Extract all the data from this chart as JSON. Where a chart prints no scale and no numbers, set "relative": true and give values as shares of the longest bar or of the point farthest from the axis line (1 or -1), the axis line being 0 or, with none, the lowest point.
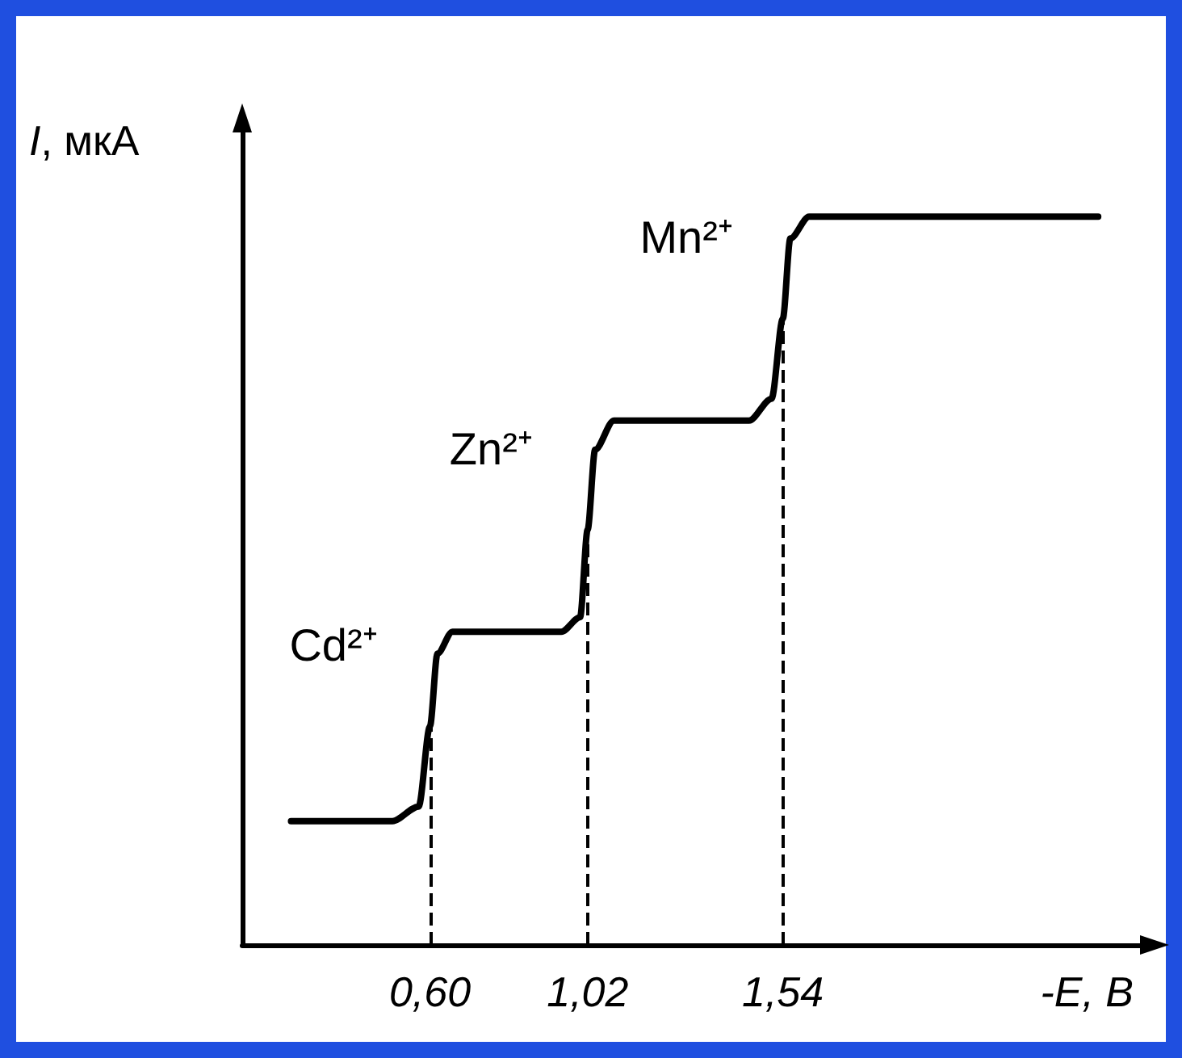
{
  "chart_data": {
    "type": "line",
    "relative": true,
    "xlabel": "-E, В",
    "ylabel": "I, мкА",
    "x": [
      0.23,
      0.5,
      0.57,
      0.6,
      0.62,
      0.66,
      0.95,
      1.0,
      1.02,
      1.04,
      1.09,
      1.45,
      1.51,
      1.54,
      1.56,
      1.61,
      2.38
    ],
    "series": [
      {
        "color": "#000000",
        "values": [
          0.17,
          0.17,
          0.19,
          0.3,
          0.4,
          0.43,
          0.43,
          0.45,
          0.57,
          0.68,
          0.72,
          0.72,
          0.75,
          0.86,
          0.97,
          1.0,
          1.0
        ]
      }
    ],
    "xlim": [
      0.1,
      2.5
    ],
    "xticks": [
      {
        "value": 0.6,
        "label": "0,60"
      },
      {
        "value": 1.02,
        "label": "1,02"
      },
      {
        "value": 1.54,
        "label": "1,54"
      }
    ],
    "tick_labels": "x",
    "grid": false,
    "marker": "none",
    "line_style": "solid",
    "ref_lines": [
      {
        "axis": "x",
        "value": 0.6,
        "line_style": "dashed"
      },
      {
        "axis": "x",
        "value": 1.02,
        "line_style": "dashed"
      },
      {
        "axis": "x",
        "value": 1.54,
        "line_style": "dashed"
      }
    ],
    "annotations": [
      "Cd²⁺",
      "Zn²⁺",
      "Mn²⁺"
    ]
  }
}
